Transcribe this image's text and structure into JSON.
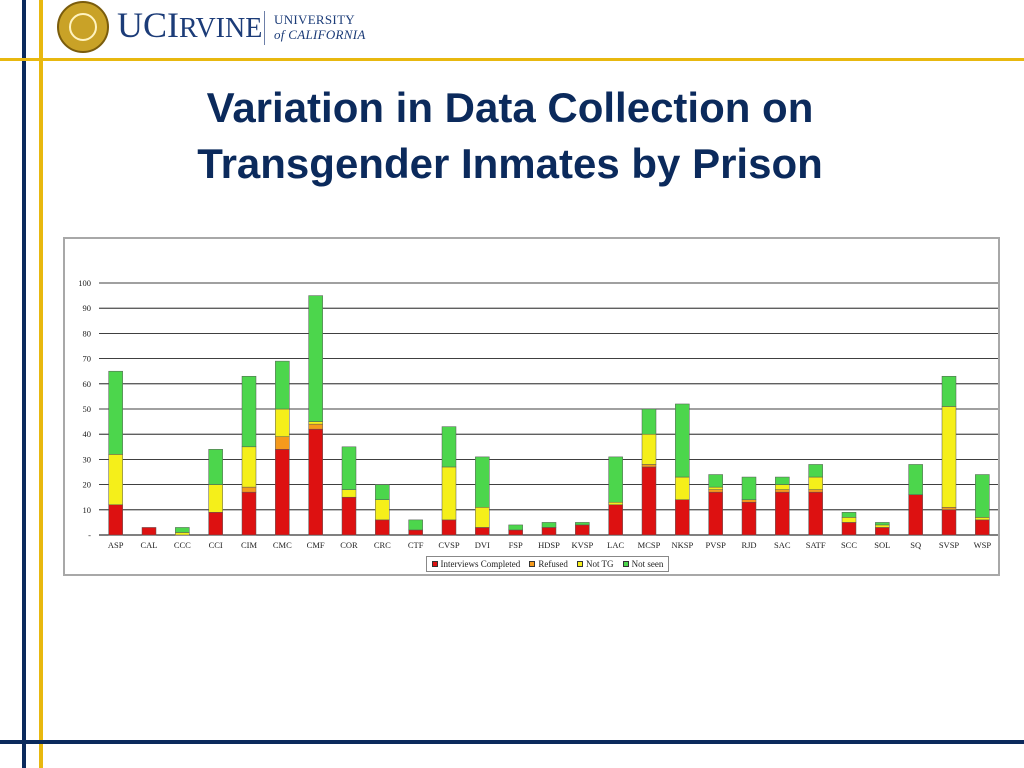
{
  "header": {
    "logo_uci_big1": "UC",
    "logo_uci_big2": "I",
    "logo_uci_small": "RVINE",
    "logo_uc_line1": "UNIVERSITY",
    "logo_uc_line2": "of CALIFORNIA"
  },
  "slide": {
    "title_line1": "Variation in Data Collection on",
    "title_line2": "Transgender Inmates by Prison"
  },
  "colors": {
    "interviews": "#dd1111",
    "refused": "#f59a1c",
    "not_tg": "#f5ef1a",
    "not_seen": "#4cd64c",
    "navy": "#0b2a5c",
    "gold": "#e8b80f"
  },
  "chart_data": {
    "type": "bar",
    "stacked": true,
    "categories": [
      "ASP",
      "CAL",
      "CCC",
      "CCI",
      "CIM",
      "CMC",
      "CMF",
      "COR",
      "CRC",
      "CTF",
      "CVSP",
      "DVI",
      "FSP",
      "HDSP",
      "KVSP",
      "LAC",
      "MCSP",
      "NKSP",
      "PVSP",
      "RJD",
      "SAC",
      "SATF",
      "SCC",
      "SOL",
      "SQ",
      "SVSP",
      "WSP"
    ],
    "series": [
      {
        "name": "Interviews Completed",
        "color": "#dd1111",
        "values": [
          12,
          3,
          0,
          9,
          17,
          34,
          42,
          15,
          6,
          2,
          6,
          3,
          2,
          3,
          4,
          12,
          27,
          14,
          17,
          13,
          17,
          17,
          5,
          3,
          16,
          10,
          6
        ]
      },
      {
        "name": "Refused",
        "color": "#f59a1c",
        "values": [
          0,
          0,
          0,
          0,
          2,
          5,
          2,
          0,
          0,
          0,
          0,
          0,
          0,
          0,
          0,
          0,
          1,
          0,
          1,
          1,
          1,
          1,
          0,
          0,
          0,
          1,
          0
        ]
      },
      {
        "name": "Not TG",
        "color": "#f5ef1a",
        "values": [
          20,
          0,
          1,
          11,
          16,
          11,
          1,
          3,
          8,
          0,
          21,
          8,
          0,
          0,
          0,
          1,
          12,
          9,
          1,
          0,
          2,
          5,
          2,
          1,
          0,
          40,
          1
        ]
      },
      {
        "name": "Not seen",
        "color": "#4cd64c",
        "values": [
          33,
          0,
          2,
          14,
          28,
          19,
          50,
          17,
          6,
          4,
          16,
          20,
          2,
          2,
          1,
          18,
          10,
          29,
          5,
          9,
          3,
          5,
          2,
          1,
          12,
          12,
          17
        ]
      }
    ],
    "y_ticks": [
      "-",
      "10",
      "20",
      "30",
      "40",
      "50",
      "60",
      "70",
      "80",
      "90",
      "100"
    ],
    "ylim": [
      0,
      100
    ],
    "grid": true,
    "legend_position": "bottom-center"
  }
}
